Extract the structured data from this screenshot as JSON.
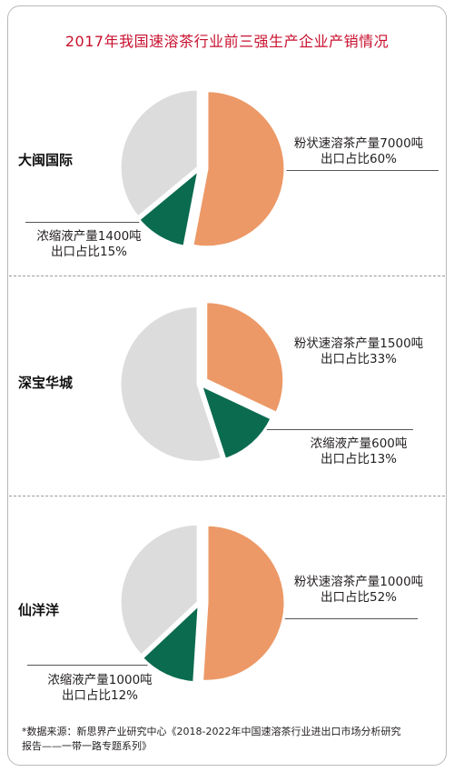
{
  "title": "2017年我国速溶茶行业前三强生产企业产销情况",
  "colors": {
    "powder": "#ec9967",
    "concentrate": "#0b6b4f",
    "other": "#dcdcdc",
    "title": "#c8102e"
  },
  "chart_data": [
    {
      "type": "pie",
      "company": "大闽国际",
      "slices": [
        {
          "product": "粉状速溶茶",
          "output_tons": 7000,
          "export_share_pct": 60,
          "label_line1": "粉状速溶茶产量7000吨",
          "label_line2": "出口占比60%",
          "share": 0.53
        },
        {
          "product": "浓缩液",
          "output_tons": 1400,
          "export_share_pct": 15,
          "label_line1": "浓缩液产量1400吨",
          "label_line2": "出口占比15%",
          "share": 0.11
        },
        {
          "product": "其他",
          "share": 0.36
        }
      ]
    },
    {
      "type": "pie",
      "company": "深宝华城",
      "slices": [
        {
          "product": "粉状速溶茶",
          "output_tons": 1500,
          "export_share_pct": 33,
          "label_line1": "粉状速溶茶产量1500吨",
          "label_line2": "出口占比33%",
          "share": 0.32
        },
        {
          "product": "浓缩液",
          "output_tons": 600,
          "export_share_pct": 13,
          "label_line1": "浓缩液产量600吨",
          "label_line2": "出口占比13%",
          "share": 0.13
        },
        {
          "product": "其他",
          "share": 0.55
        }
      ]
    },
    {
      "type": "pie",
      "company": "仙洋洋",
      "slices": [
        {
          "product": "粉状速溶茶",
          "output_tons": 1000,
          "export_share_pct": 52,
          "label_line1": "粉状速溶茶产量1000吨",
          "label_line2": "出口占比52%",
          "share": 0.51
        },
        {
          "product": "浓缩液",
          "output_tons": 1000,
          "export_share_pct": 12,
          "label_line1": "浓缩液产量1000吨",
          "label_line2": "出口占比12%",
          "share": 0.12
        },
        {
          "product": "其他",
          "share": 0.37
        }
      ]
    }
  ],
  "footnote": {
    "line1": "*数据来源：新思界产业研究中心《2018-2022年中国速溶茶行业进出口市场分析研究",
    "line2": "报告——一带一路专题系列》"
  }
}
